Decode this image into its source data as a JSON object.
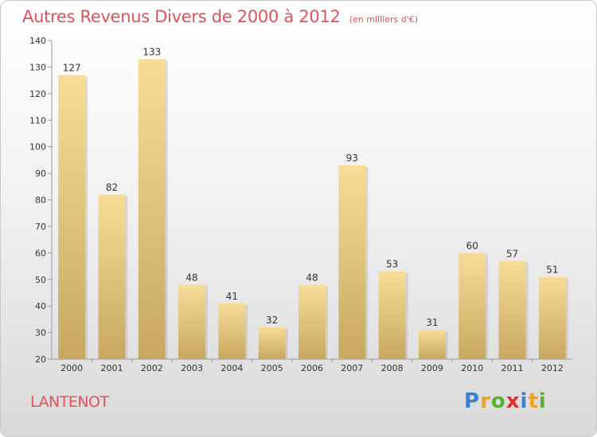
{
  "title": "Autres Revenus Divers de 2000 à 2012",
  "subtitle": "(en milliers d'€)",
  "commune": "LANTENOT",
  "logo": {
    "letters": [
      "P",
      "r",
      "o",
      "x",
      "i",
      "t",
      "i"
    ],
    "colors": [
      "#3a7fd0",
      "#f0a020",
      "#5cb030",
      "#e03030",
      "#3a7fd0",
      "#f0a020",
      "#5cb030"
    ]
  },
  "colors": {
    "title": "#e0525a",
    "bar_light": "#f7dc98",
    "bar_dark": "#c8a860"
  },
  "chart_data": {
    "type": "bar",
    "categories": [
      "2000",
      "2001",
      "2002",
      "2003",
      "2004",
      "2005",
      "2006",
      "2007",
      "2008",
      "2009",
      "2010",
      "2011",
      "2012"
    ],
    "values": [
      127,
      82,
      133,
      48,
      41,
      32,
      48,
      93,
      53,
      31,
      60,
      57,
      51
    ],
    "ylim": [
      20,
      140
    ],
    "yticks": [
      20,
      30,
      40,
      50,
      60,
      70,
      80,
      90,
      100,
      110,
      120,
      130,
      140
    ],
    "grid": false
  }
}
